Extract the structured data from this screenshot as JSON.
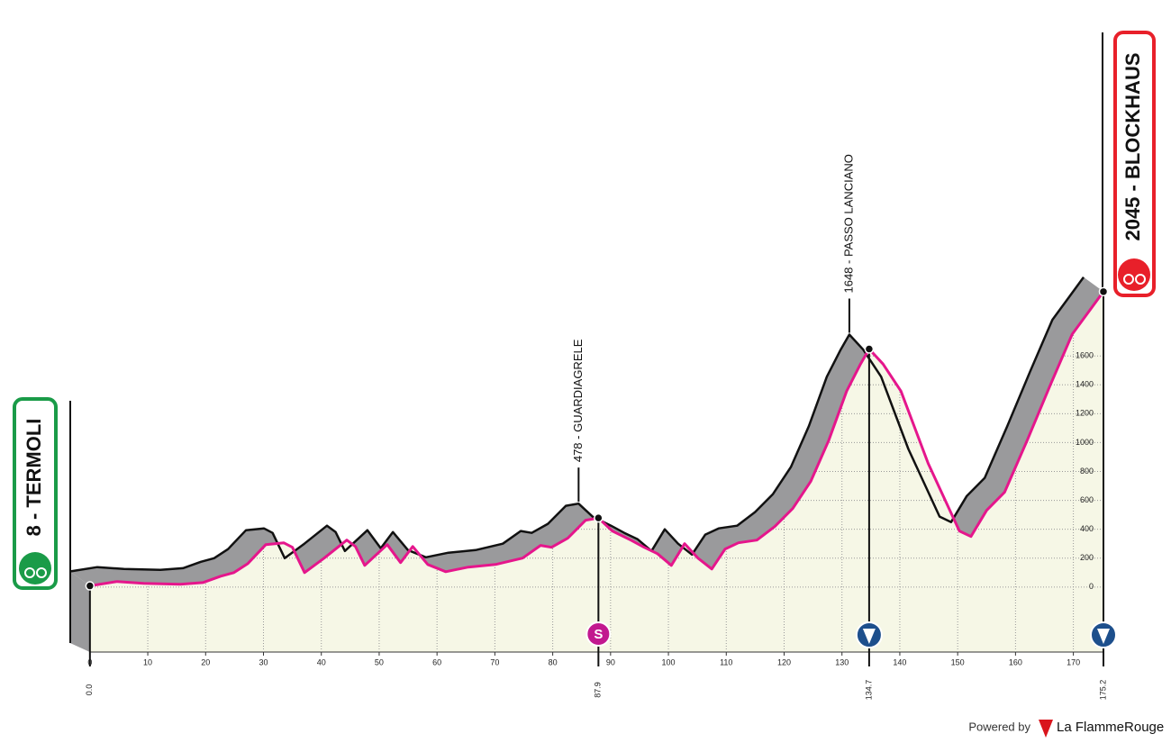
{
  "chart_data": {
    "type": "area",
    "start": {
      "label": "8 - TERMOLI"
    },
    "finish": {
      "label": "2045 - BLOCKHAUS"
    },
    "x": [
      0,
      4.7,
      9.3,
      15.6,
      19.5,
      22.6,
      24.9,
      27.3,
      30.4,
      33.5,
      35,
      37.1,
      40.5,
      44.4,
      45.9,
      47.5,
      51.4,
      53.7,
      55.8,
      58.4,
      61.5,
      65.4,
      70.1,
      74.8,
      77.9,
      79.8,
      82.6,
      85.7,
      87.9,
      90.3,
      93.5,
      95.8,
      98.1,
      100.5,
      102.8,
      105.1,
      107.5,
      109.8,
      112.1,
      115.3,
      118.4,
      121.5,
      124.6,
      127.7,
      130.8,
      133.2,
      134.7,
      137.1,
      140.2,
      144.9,
      150.3,
      152.3,
      155,
      158.1,
      162,
      165.9,
      169.8,
      172.9,
      175.2
    ],
    "values": [
      8,
      38,
      25,
      19,
      31,
      75,
      100,
      163,
      294,
      306,
      275,
      100,
      200,
      325,
      281,
      150,
      294,
      169,
      281,
      156,
      106,
      138,
      156,
      200,
      288,
      275,
      338,
      463,
      478,
      388,
      325,
      275,
      231,
      150,
      300,
      200,
      125,
      263,
      306,
      325,
      419,
      544,
      731,
      1013,
      1356,
      1544,
      1648,
      1544,
      1356,
      856,
      388,
      350,
      531,
      656,
      1013,
      1388,
      1750,
      1919,
      2045
    ],
    "xlim": [
      -3.4,
      175.2
    ],
    "ylim": [
      -450,
      2100
    ],
    "xticks": [
      0,
      10,
      20,
      30,
      40,
      50,
      60,
      70,
      80,
      90,
      100,
      110,
      120,
      130,
      140,
      150,
      160,
      170
    ],
    "yticks": [
      0,
      200,
      400,
      600,
      800,
      1000,
      1200,
      1400,
      1600
    ],
    "km_markers": [
      {
        "value": 0,
        "label": "0.0"
      },
      {
        "value": 87.9,
        "label": "87.9"
      },
      {
        "value": 134.7,
        "label": "134.7"
      },
      {
        "value": 175.2,
        "label": "175.2"
      }
    ],
    "climbs": [
      {
        "label": "478 - GUARDIAGRELE",
        "km": 87.9,
        "elevation": 478
      },
      {
        "label": "1648 - PASSO LANCIANO",
        "km": 134.7,
        "elevation": 1648
      }
    ],
    "sprint": {
      "label": "S",
      "km": 87.9
    },
    "line_color": "#e5168c",
    "fill_color": "#f6f7e6",
    "shadow_color": "#9a9a9c",
    "grid": true
  },
  "footer": {
    "powered": "Powered by",
    "brand": "La FlammeRouge"
  }
}
